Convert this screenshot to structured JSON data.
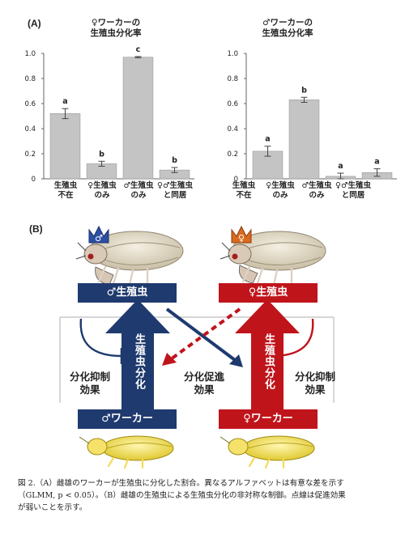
{
  "panel_a_label": "(A)",
  "panel_b_label": "(B)",
  "chart_data": [
    {
      "type": "bar",
      "title": "♀ワーカーの\n生殖虫分化率",
      "categories": [
        "生殖虫\n不在",
        "♀生殖虫\nのみ",
        "♂生殖虫\nのみ",
        "♀♂生殖虫\nと同居"
      ],
      "values": [
        0.52,
        0.12,
        0.97,
        0.07
      ],
      "errors": [
        0.04,
        0.02,
        0.005,
        0.02
      ],
      "letters": [
        "a",
        "b",
        "c",
        "b"
      ],
      "ylim": [
        0,
        1.0
      ],
      "yticks": [
        "0",
        "0.2",
        "0.4",
        "0.6",
        "0.8",
        "1.0"
      ],
      "bar_color": "#c4c4c4"
    },
    {
      "type": "bar",
      "title": "♂ワーカーの\n生殖虫分化率",
      "categories": [
        "生殖虫\n不在",
        "♀生殖虫\nのみ",
        "♂生殖虫\nのみ",
        "♀♂生殖虫\nと同居"
      ],
      "values": [
        0.22,
        0.63,
        0.02,
        0.05
      ],
      "errors": [
        0.04,
        0.02,
        0.025,
        0.03
      ],
      "letters": [
        "a",
        "b",
        "a",
        "a"
      ],
      "ylim": [
        0,
        1.0
      ],
      "yticks": [
        "0",
        "0.2",
        "0.4",
        "0.6",
        "0.8",
        "1.0"
      ],
      "bar_color": "#c4c4c4"
    }
  ],
  "diagram": {
    "male_reproductive": "♂生殖虫",
    "female_reproductive": "♀生殖虫",
    "male_worker": "♂ワーカー",
    "female_worker": "♀ワーカー",
    "male_differentiation": "生殖虫分化",
    "female_differentiation": "生殖虫分化",
    "left_effect": "分化抑制\n効果",
    "center_effect": "分化促進\n効果",
    "right_effect": "分化抑制\n効果",
    "male_color": "#1f3a6e",
    "female_color": "#c0141b"
  },
  "caption": {
    "line1": "図 2.（A）雌雄のワーカーが生殖虫に分化した割合。異なるアルファベットは有意な差を示す",
    "line2": "（GLMM, p < 0.05）。（B）雌雄の生殖虫による生殖虫分化の非対称な制御。点線は促進効果",
    "line3": "が弱いことを示す。"
  }
}
